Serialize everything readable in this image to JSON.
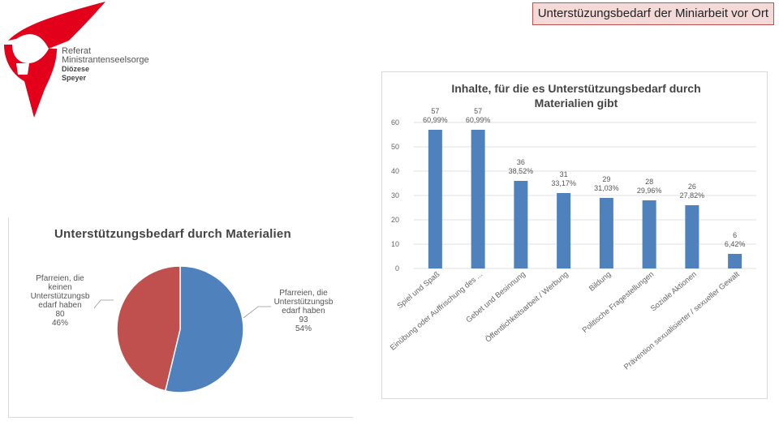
{
  "header": {
    "title": "Unterstüzungsbedarf der Miniarbeit vor Ort"
  },
  "logo": {
    "line1": "Referat",
    "line2": "Ministrantenseelsorge",
    "line3": "Diözese",
    "line4": "Speyer",
    "colors": {
      "red": "#e2001a"
    }
  },
  "chart_data": [
    {
      "type": "pie",
      "title": "Unterstützungsbedarf durch Materialien",
      "slices": [
        {
          "label": "Pfarreien, die Unterstützungsbedarf haben",
          "value": 93,
          "percent": "54%",
          "color": "#4f81bd"
        },
        {
          "label": "Pfarreien, die keinen Unterstützungsbedarf haben",
          "value": 80,
          "percent": "46%",
          "color": "#c0504d"
        }
      ],
      "labels_text": {
        "right": [
          "Pfarreien, die",
          "Unterstützungsb",
          "edarf haben",
          "93",
          "54%"
        ],
        "left": [
          "Pfarreien, die",
          "keinen",
          "Unterstützungsb",
          "edarf haben",
          "80",
          "46%"
        ]
      }
    },
    {
      "type": "bar",
      "title_lines": [
        "Inhalte, für die es Unterstützungsbedarf durch",
        "Materialien gibt"
      ],
      "categories": [
        "Spiel und Spaß",
        "Einübung oder Auffrischung des ...",
        "Gebet und Besinnung",
        "Öffentlichkeitsarbeit / Werbung",
        "Bildung",
        "Politische Fragestellungen",
        "Soziale Aktionen",
        "Prävention sexualisierter / sexueller Gewalt"
      ],
      "values": [
        57,
        57,
        36,
        31,
        29,
        28,
        26,
        6
      ],
      "percent_labels": [
        "60,99%",
        "60,99%",
        "38,52%",
        "33,17%",
        "31,03%",
        "29,96%",
        "27,82%",
        "6,42%"
      ],
      "ylim": [
        0,
        60
      ],
      "yticks": [
        "0",
        "10",
        "20",
        "30",
        "40",
        "50",
        "60"
      ],
      "grid": true,
      "bar_color": "#4f81bd"
    }
  ]
}
